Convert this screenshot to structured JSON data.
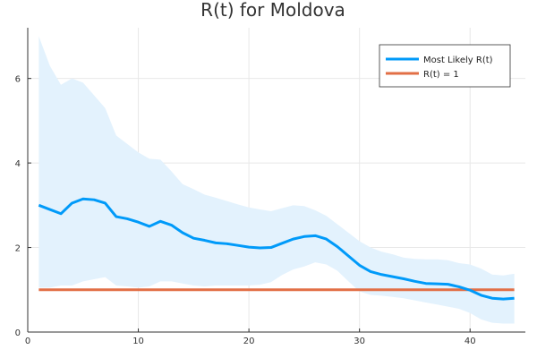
{
  "chart_data": {
    "type": "line",
    "title": "R(t) for Moldova",
    "xlabel": "",
    "ylabel": "",
    "xlim": [
      0,
      45
    ],
    "ylim": [
      0,
      7.2
    ],
    "xticks": [
      0,
      10,
      20,
      30,
      40
    ],
    "yticks": [
      0,
      2,
      4,
      6
    ],
    "grid": true,
    "legend_position": "top-right",
    "colors": {
      "most_likely": "#009af9",
      "band": "#e3f2fd",
      "reference": "#e26f46"
    },
    "x": [
      1,
      2,
      3,
      4,
      5,
      6,
      7,
      8,
      9,
      10,
      11,
      12,
      13,
      14,
      15,
      16,
      17,
      18,
      19,
      20,
      21,
      22,
      23,
      24,
      25,
      26,
      27,
      28,
      29,
      30,
      31,
      32,
      33,
      34,
      35,
      36,
      37,
      38,
      39,
      40,
      41,
      42,
      43,
      44
    ],
    "series": [
      {
        "name": "Most Likely R(t)",
        "values": [
          3.0,
          2.9,
          2.8,
          3.05,
          3.15,
          3.13,
          3.05,
          2.73,
          2.68,
          2.6,
          2.5,
          2.62,
          2.53,
          2.35,
          2.22,
          2.17,
          2.11,
          2.09,
          2.05,
          2.01,
          1.99,
          2.0,
          2.1,
          2.2,
          2.26,
          2.28,
          2.2,
          2.02,
          1.8,
          1.58,
          1.43,
          1.36,
          1.31,
          1.26,
          1.2,
          1.15,
          1.14,
          1.13,
          1.07,
          0.99,
          0.87,
          0.8,
          0.78,
          0.8
        ]
      },
      {
        "name": "R(t) = 1",
        "values": [
          1,
          1,
          1,
          1,
          1,
          1,
          1,
          1,
          1,
          1,
          1,
          1,
          1,
          1,
          1,
          1,
          1,
          1,
          1,
          1,
          1,
          1,
          1,
          1,
          1,
          1,
          1,
          1,
          1,
          1,
          1,
          1,
          1,
          1,
          1,
          1,
          1,
          1,
          1,
          1,
          1,
          1,
          1,
          1
        ]
      }
    ],
    "band": {
      "upper": [
        7.0,
        6.3,
        5.85,
        6.0,
        5.9,
        5.6,
        5.3,
        4.65,
        4.45,
        4.25,
        4.1,
        4.08,
        3.8,
        3.5,
        3.38,
        3.25,
        3.18,
        3.1,
        3.02,
        2.95,
        2.9,
        2.86,
        2.93,
        3.0,
        2.98,
        2.88,
        2.75,
        2.55,
        2.35,
        2.15,
        2.0,
        1.9,
        1.84,
        1.76,
        1.73,
        1.72,
        1.72,
        1.7,
        1.63,
        1.6,
        1.5,
        1.36,
        1.34,
        1.38
      ],
      "lower": [
        1.05,
        1.05,
        1.1,
        1.1,
        1.2,
        1.25,
        1.3,
        1.1,
        1.08,
        1.05,
        1.08,
        1.2,
        1.2,
        1.15,
        1.1,
        1.08,
        1.1,
        1.1,
        1.1,
        1.1,
        1.12,
        1.18,
        1.35,
        1.48,
        1.55,
        1.65,
        1.6,
        1.45,
        1.2,
        0.96,
        0.88,
        0.86,
        0.83,
        0.8,
        0.75,
        0.7,
        0.65,
        0.6,
        0.55,
        0.45,
        0.3,
        0.22,
        0.2,
        0.2
      ]
    }
  }
}
